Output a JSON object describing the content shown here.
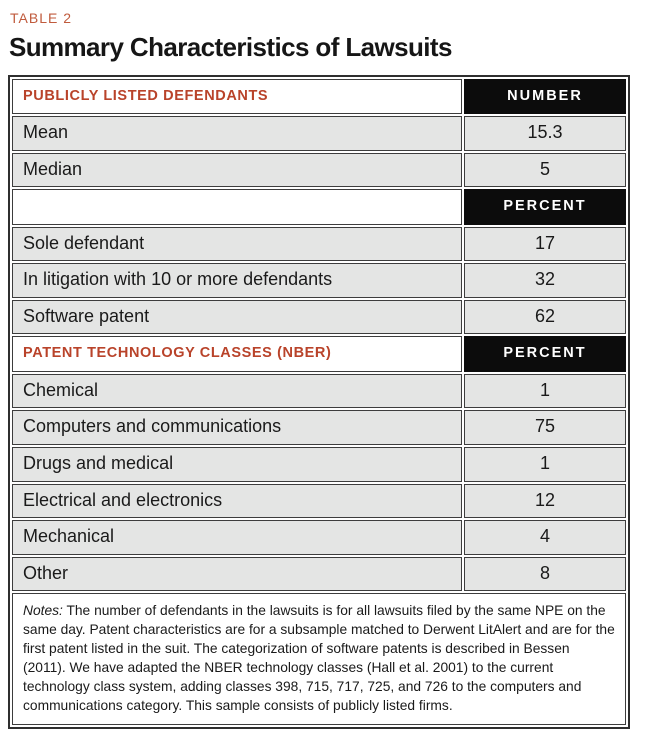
{
  "page": {
    "eyebrow": "TABLE 2"
  },
  "chart_data": {
    "type": "table",
    "title": "Summary Characteristics of Lawsuits",
    "columns": [
      "label",
      "value"
    ],
    "sections": [
      {
        "header": "PUBLICLY LISTED DEFENDANTS",
        "unit": "NUMBER",
        "rows": [
          {
            "label": "Mean",
            "value": "15.3"
          },
          {
            "label": "Median",
            "value": "5"
          }
        ]
      },
      {
        "header": "",
        "unit": "PERCENT",
        "rows": [
          {
            "label": "Sole defendant",
            "value": "17"
          },
          {
            "label": "In litigation with 10 or more defendants",
            "value": "32"
          },
          {
            "label": "Software patent",
            "value": "62"
          }
        ]
      },
      {
        "header": "PATENT TECHNOLOGY CLASSES (NBER)",
        "unit": "PERCENT",
        "rows": [
          {
            "label": "Chemical",
            "value": "1"
          },
          {
            "label": "Computers and communications",
            "value": "75"
          },
          {
            "label": "Drugs and medical",
            "value": "1"
          },
          {
            "label": "Electrical and electronics",
            "value": "12"
          },
          {
            "label": "Mechanical",
            "value": "4"
          },
          {
            "label": "Other",
            "value": "8"
          }
        ]
      }
    ]
  },
  "notes": {
    "label": "Notes:",
    "text": " The number of defendants in the lawsuits is for all lawsuits filed by the same NPE on the same day. Patent characteristics are for a subsample matched to Derwent LitAlert and are for the first patent listed in the suit. The categorization of software patents is described in Bessen (2011). We have adapted the NBER technology classes (Hall et al. 2001) to the current technology class system, adding classes 398, 715, 717, 725, and 726 to the computers and communications category. This sample consists of publicly listed firms."
  },
  "colors": {
    "accent": "#b9432a",
    "eyebrow": "#c05b3d",
    "unit_header_bg": "#0c0c0c",
    "unit_header_text": "#ffffff",
    "row_bg": "#e4e5e4",
    "border": "#3d3d3d"
  }
}
